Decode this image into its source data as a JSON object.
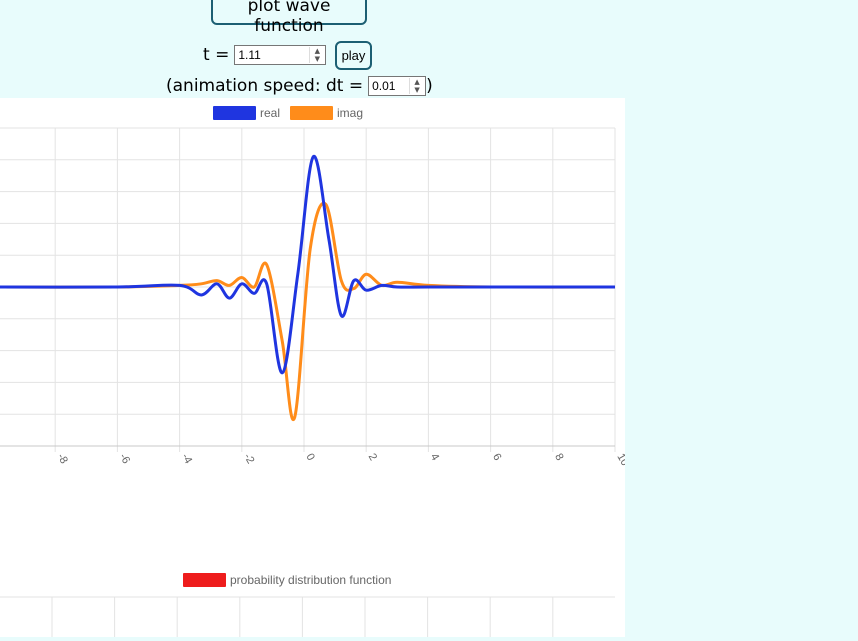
{
  "controls": {
    "plot_button": "plot wave function",
    "t_label": "t =",
    "t_value": "1.11",
    "play_button": "play",
    "speed_label_open": "(animation speed: dt =",
    "dt_value": "0.01",
    "speed_label_close": ")"
  },
  "colors": {
    "real": "#1f35e0",
    "imag": "#ff8c1a",
    "pdf": "#ee1c1c",
    "button_border": "#1c5f73",
    "page_bg": "#e8fcfc"
  },
  "chart_data": [
    {
      "type": "line",
      "xlim": [
        -10,
        10
      ],
      "ylim": [
        -5,
        5
      ],
      "grid": true,
      "legend": "top-center",
      "x_tick_labels": [
        "-8",
        "-6",
        "-4",
        "-2",
        "0",
        "2",
        "4",
        "6",
        "8",
        "10"
      ],
      "series": [
        {
          "name": "real",
          "x": [
            -10,
            -6,
            -4,
            -3.3,
            -2.8,
            -2.4,
            -2.0,
            -1.6,
            -1.2,
            -0.7,
            -0.2,
            0.3,
            0.8,
            1.2,
            1.6,
            2.0,
            2.5,
            3.0,
            4.0,
            6.0,
            10
          ],
          "y": [
            0,
            0,
            0.05,
            -0.25,
            0.1,
            -0.35,
            0.1,
            -0.2,
            0.1,
            -2.7,
            0.4,
            4.1,
            1.5,
            -0.9,
            0.2,
            -0.1,
            0.05,
            0,
            0,
            0,
            0
          ]
        },
        {
          "name": "imag",
          "x": [
            -10,
            -6,
            -4,
            -3.3,
            -2.8,
            -2.4,
            -2.0,
            -1.6,
            -1.2,
            -0.7,
            -0.3,
            0.2,
            0.7,
            1.2,
            1.6,
            2.0,
            2.5,
            3.0,
            4.0,
            6.0,
            10
          ],
          "y": [
            0,
            0,
            0.05,
            0.1,
            0.2,
            0.05,
            0.3,
            0.0,
            0.7,
            -1.7,
            -4.1,
            1.2,
            2.6,
            0.2,
            -0.05,
            0.4,
            0.05,
            0.15,
            0.05,
            0,
            0
          ]
        }
      ]
    },
    {
      "type": "line",
      "legend": "top-center",
      "grid": true,
      "series": [
        {
          "name": "probability distribution function"
        }
      ]
    }
  ]
}
